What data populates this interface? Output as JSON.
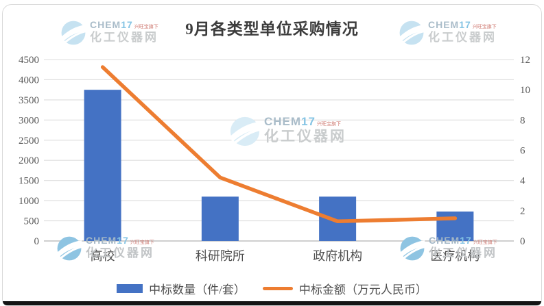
{
  "page": {
    "title": "9月各类型单位采购情况"
  },
  "chart_data": {
    "type": "bar",
    "subtype": "bar-line-combo",
    "title": "9月各类型单位采购情况",
    "categories": [
      "高校",
      "科研院所",
      "政府机构",
      "医疗机构"
    ],
    "series": [
      {
        "name": "中标数量（件/套）",
        "type": "bar",
        "axis": "left",
        "color": "#4472C4",
        "values": [
          3750,
          1100,
          1100,
          730
        ]
      },
      {
        "name": "中标金额（万元人民币）",
        "type": "line",
        "axis": "right",
        "color": "#ED7D31",
        "values": [
          11.5,
          4.2,
          1.3,
          1.5
        ]
      }
    ],
    "left_axis": {
      "min": 0,
      "max": 4500,
      "step": 500,
      "ticks": [
        "0",
        "500",
        "1000",
        "1500",
        "2000",
        "2500",
        "3000",
        "3500",
        "4000",
        "4500"
      ]
    },
    "right_axis": {
      "min": 0,
      "max": 12,
      "step": 2,
      "ticks": [
        "0",
        "2",
        "4",
        "6",
        "8",
        "10",
        "12"
      ]
    },
    "grid": true,
    "legend_position": "bottom"
  },
  "legend": {
    "bar_label": "中标数量（件/套）",
    "line_label": "中标金额（万元人民币）"
  },
  "watermark": {
    "brand_prefix": "CHEM",
    "brand_suffix": "17",
    "tagline": "兴旺宝旗下",
    "site_name": "化工仪器网"
  },
  "colors": {
    "bar": "#4472C4",
    "line": "#ED7D31",
    "gridline": "#dedede",
    "axis_line": "#bfbfbf",
    "tick_text": "#595959",
    "title_text": "#3c3c3c"
  }
}
